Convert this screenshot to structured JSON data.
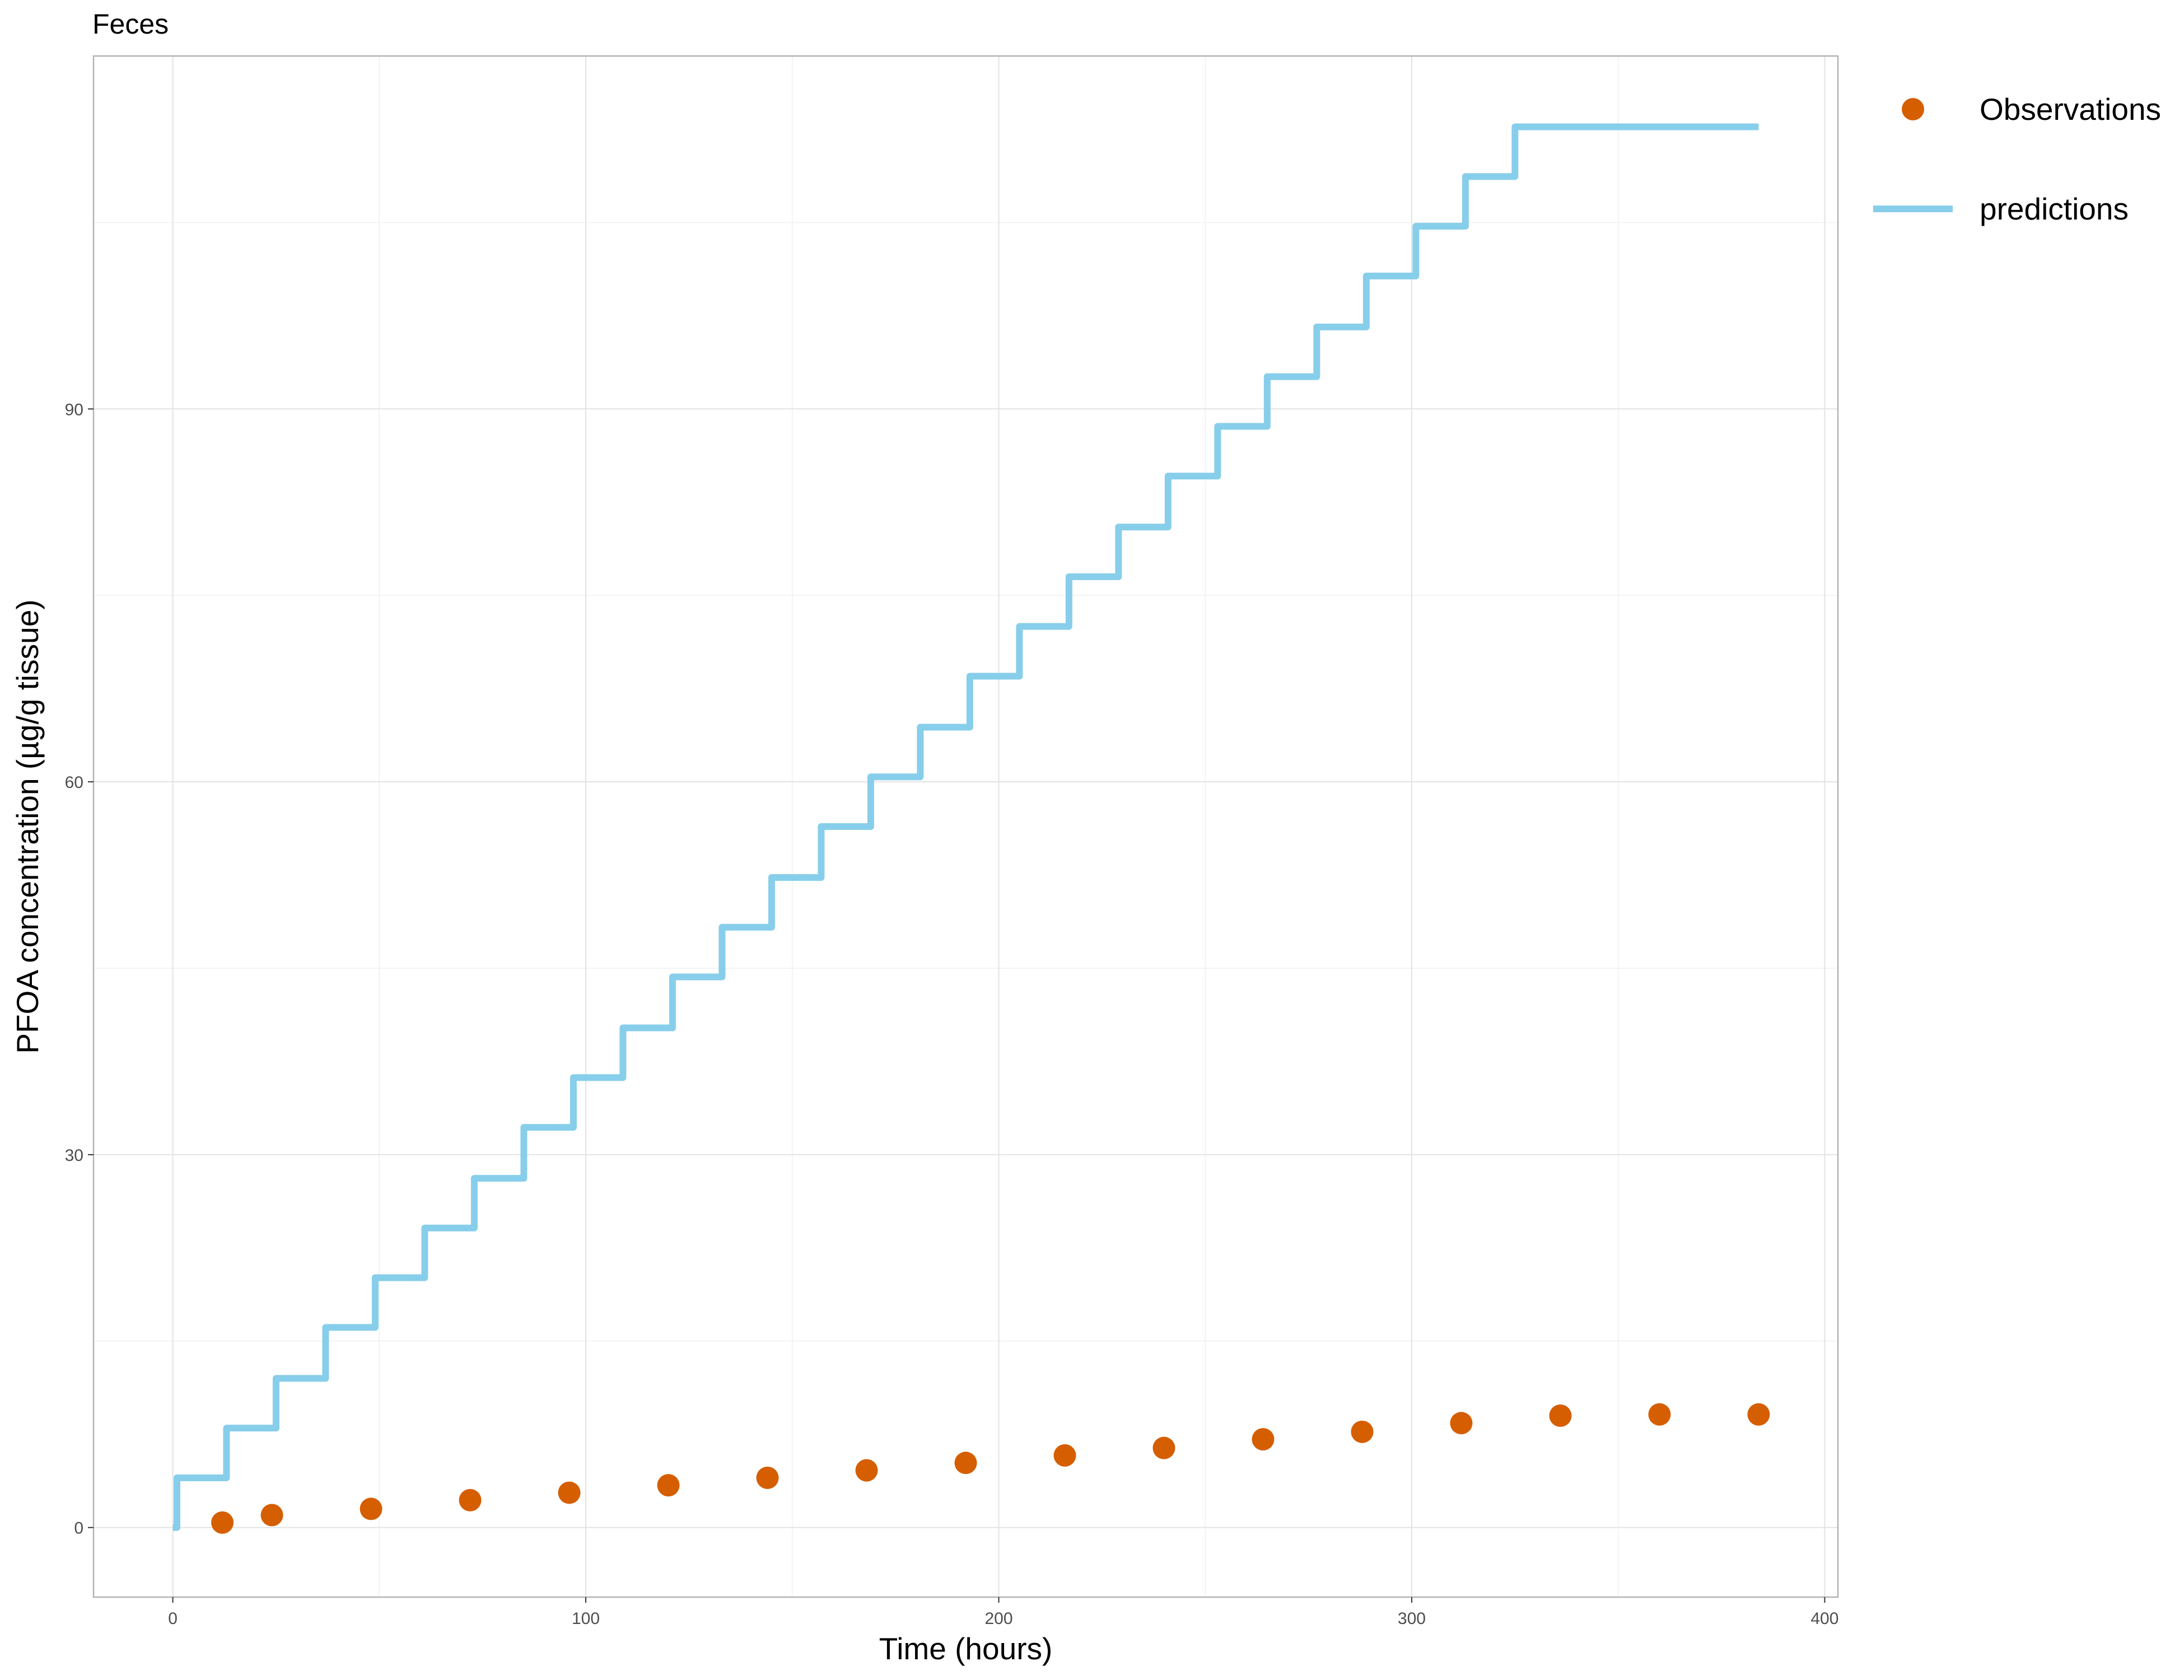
{
  "chart_data": {
    "type": "line",
    "title": "Feces",
    "xlabel": "Time (hours)",
    "ylabel": "PFOA concentration (µg/g tissue)",
    "xlim": [
      -19.2,
      403.2
    ],
    "ylim": [
      -5.6,
      118.4
    ],
    "x_ticks": [
      0,
      100,
      200,
      300,
      400
    ],
    "y_ticks": [
      0,
      30,
      60,
      90
    ],
    "x_tick_labels": [
      "0",
      "100",
      "200",
      "300",
      "400"
    ],
    "y_tick_labels": [
      "0",
      "30",
      "60",
      "90"
    ],
    "grid": true,
    "legend_position": "right",
    "legend": [
      {
        "label": "Observations",
        "kind": "point",
        "color": "#D55E00"
      },
      {
        "label": "predictions",
        "kind": "line",
        "color": "#87CEEB"
      }
    ],
    "series": [
      {
        "name": "Observations",
        "kind": "scatter",
        "color": "#D55E00",
        "x": [
          12,
          24,
          48,
          72,
          96,
          120,
          144,
          168,
          192,
          216,
          240,
          264,
          288,
          312,
          336,
          360,
          384
        ],
        "y": [
          0.4,
          1.0,
          1.5,
          2.2,
          2.8,
          3.4,
          4.0,
          4.6,
          5.2,
          5.8,
          6.4,
          7.1,
          7.7,
          8.4,
          9.0,
          9.1,
          9.1
        ]
      },
      {
        "name": "predictions",
        "kind": "step",
        "color": "#87CEEB",
        "x": [
          0,
          1,
          13,
          25,
          37,
          49,
          61,
          73,
          85,
          97,
          109,
          121,
          133,
          145,
          157,
          169,
          181,
          193,
          205,
          217,
          229,
          241,
          253,
          265,
          277,
          289,
          301,
          313,
          325,
          384
        ],
        "y": [
          0,
          4.0,
          8.0,
          12.0,
          16.1,
          20.1,
          24.1,
          28.1,
          32.2,
          36.2,
          40.2,
          44.3,
          48.3,
          52.3,
          56.4,
          60.4,
          64.4,
          68.5,
          72.5,
          76.5,
          80.5,
          84.6,
          88.6,
          92.6,
          96.6,
          100.7,
          104.7,
          108.7,
          112.7,
          112.7
        ]
      }
    ]
  }
}
